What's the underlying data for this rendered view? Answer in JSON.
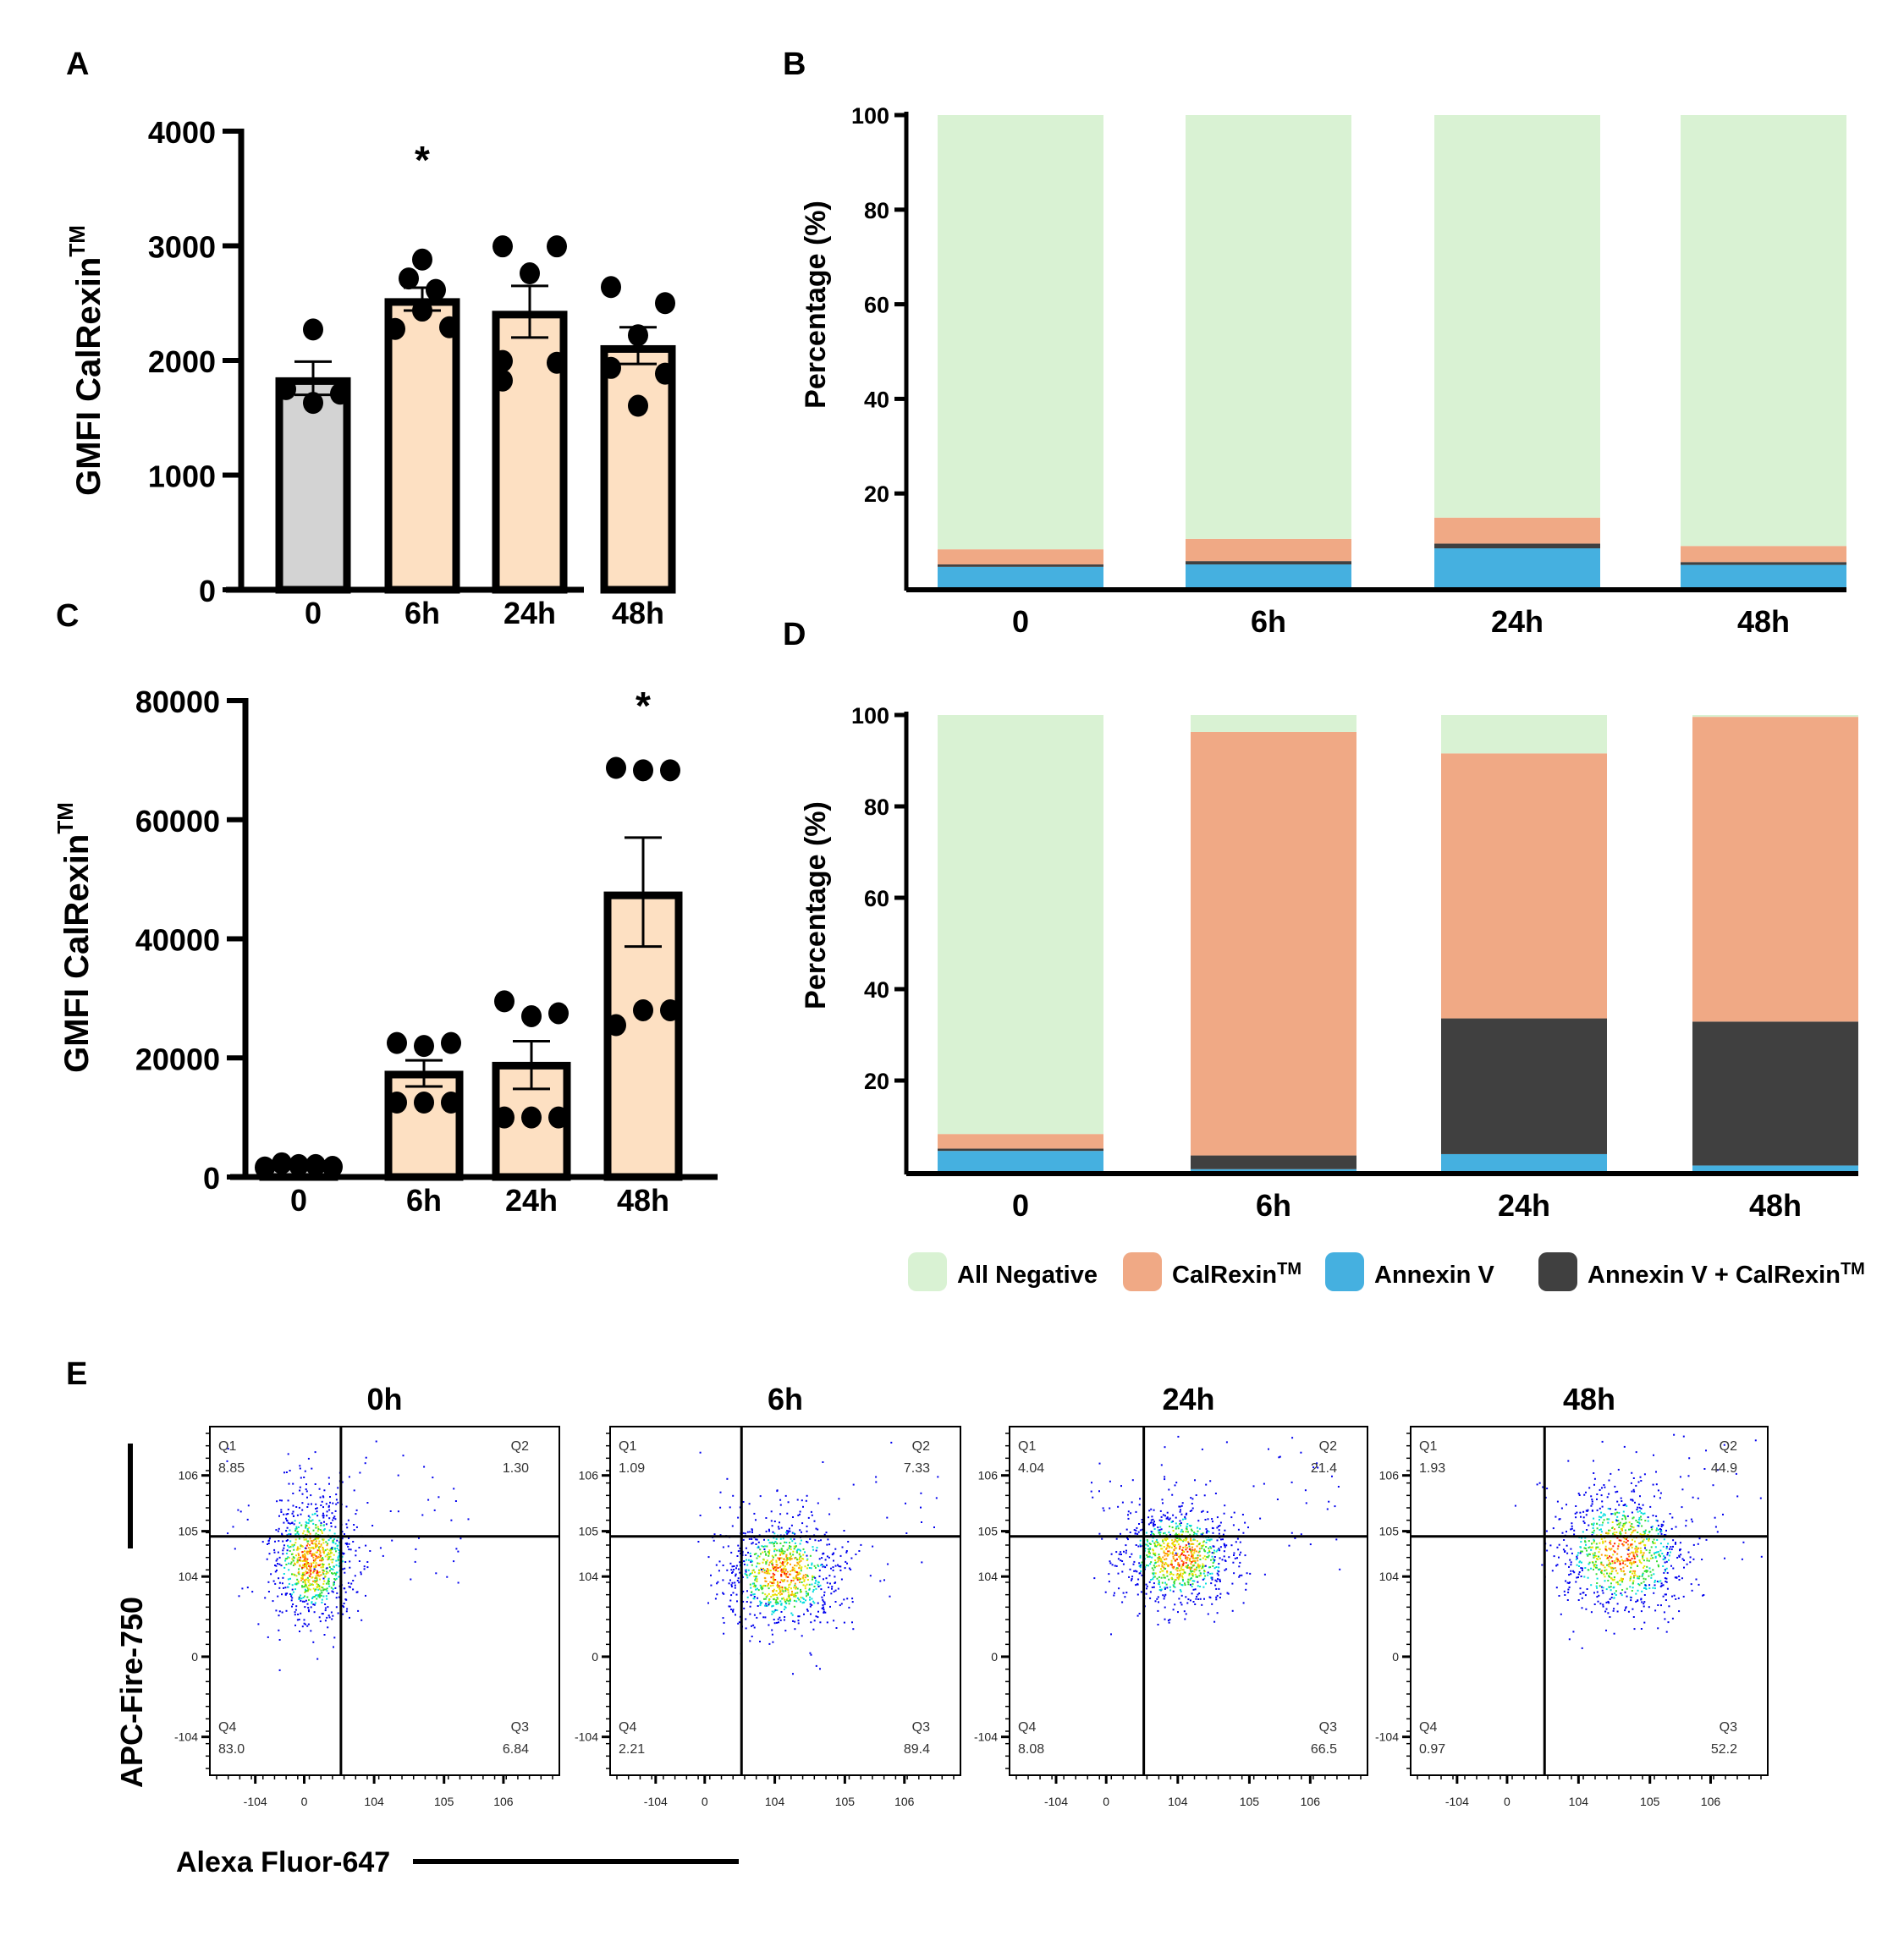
{
  "panel_labels": {
    "a": "A",
    "b": "B",
    "c": "C",
    "d": "D",
    "e": "E"
  },
  "legend": {
    "items": [
      {
        "label": "All Negative",
        "color": "#d9f2d3",
        "tm": false
      },
      {
        "label": "CalRexin",
        "color": "#f0a985",
        "tm": true
      },
      {
        "label": "Annexin V",
        "color": "#45b0e0",
        "tm": false
      },
      {
        "label": "Annexin V + CalRexin",
        "color": "#404040",
        "tm": true
      }
    ]
  },
  "chart_data": [
    {
      "id": "A",
      "type": "bar",
      "title": "",
      "ylabel": "GMFI CalRexin",
      "ylabel_superscript": "TM",
      "xlabel": "",
      "categories": [
        "0",
        "6h",
        "24h",
        "48h"
      ],
      "ylim": [
        0,
        4000
      ],
      "yticks": [
        0,
        1000,
        2000,
        3000,
        4000
      ],
      "values": [
        1820,
        2510,
        2400,
        2100
      ],
      "sem_low": [
        1700,
        2435,
        2200,
        1970
      ],
      "sem_high": [
        1990,
        2635,
        2650,
        2290
      ],
      "points": [
        [
          2270,
          1750,
          1630,
          1710
        ],
        [
          2880,
          2715,
          2615,
          2435,
          2275,
          2290
        ],
        [
          2995,
          2995,
          2760,
          1995,
          1980,
          1825
        ],
        [
          2640,
          2500,
          2220,
          1935,
          1885,
          1605
        ]
      ],
      "bar_colors": [
        "#d3d3d3",
        "#fde0c2",
        "#fde0c2",
        "#fde0c2"
      ],
      "significance": [
        "",
        "*",
        "",
        ""
      ]
    },
    {
      "id": "B",
      "type": "bar",
      "stacked": true,
      "title": "",
      "ylabel": "Percentage (%)",
      "xlabel": "",
      "categories": [
        "0",
        "6h",
        "24h",
        "48h"
      ],
      "ylim": [
        0,
        100
      ],
      "yticks": [
        20,
        40,
        60,
        80,
        100
      ],
      "series": [
        {
          "name": "Annexin V",
          "values": [
            4.5,
            5.0,
            8.4,
            4.9
          ]
        },
        {
          "name": "Annexin V + CalRexin",
          "values": [
            0.5,
            0.7,
            1.0,
            0.6
          ]
        },
        {
          "name": "CalRexin",
          "values": [
            3.2,
            4.7,
            5.5,
            3.4
          ]
        },
        {
          "name": "All Negative",
          "values": [
            91.8,
            89.6,
            85.1,
            91.1
          ]
        }
      ]
    },
    {
      "id": "C",
      "type": "bar",
      "title": "",
      "ylabel": "GMFI CalRexin",
      "ylabel_superscript": "TM",
      "xlabel": "",
      "categories": [
        "0",
        "6h",
        "24h",
        "48h"
      ],
      "ylim": [
        0,
        80000
      ],
      "yticks": [
        0,
        20000,
        40000,
        60000,
        80000
      ],
      "values": [
        1800,
        17200,
        18700,
        47300
      ],
      "sem_low": [
        1600,
        15200,
        14800,
        38700
      ],
      "sem_high": [
        2000,
        19600,
        22800,
        57000
      ],
      "points": [
        [
          1600,
          2300,
          2000,
          2000,
          1700
        ],
        [
          22500,
          22000,
          22500,
          12500,
          12500,
          12500
        ],
        [
          29500,
          27000,
          27500,
          10000,
          10000,
          10000
        ],
        [
          68700,
          68300,
          68300,
          25500,
          28000,
          28000
        ]
      ],
      "bar_colors": [
        "#d3d3d3",
        "#fde0c2",
        "#fde0c2",
        "#fde0c2"
      ],
      "significance": [
        "",
        "",
        "",
        "*"
      ]
    },
    {
      "id": "D",
      "type": "bar",
      "stacked": true,
      "title": "",
      "ylabel": "Percentage (%)",
      "xlabel": "",
      "categories": [
        "0",
        "6h",
        "24h",
        "48h"
      ],
      "ylim": [
        0,
        100
      ],
      "yticks": [
        20,
        40,
        60,
        80,
        100
      ],
      "series": [
        {
          "name": "Annexin V",
          "values": [
            4.6,
            0.6,
            3.9,
            1.4
          ]
        },
        {
          "name": "Annexin V + CalRexin",
          "values": [
            0.5,
            3.0,
            29.7,
            31.5
          ]
        },
        {
          "name": "CalRexin",
          "values": [
            3.2,
            92.7,
            58.0,
            66.7
          ]
        },
        {
          "name": "All Negative",
          "values": [
            91.7,
            3.7,
            8.4,
            0.4
          ]
        }
      ]
    },
    {
      "id": "E",
      "type": "scatter",
      "subtype": "flow-cytometry-quadrant",
      "xlabel": "Alexa Fluor-647",
      "ylabel": "APC-Fire-750",
      "xticks": [
        "-10^4",
        "0",
        "10^4",
        "10^5",
        "10^6"
      ],
      "yticks": [
        "10^6",
        "10^5",
        "10^4",
        "0",
        "-10^4"
      ],
      "plots": [
        {
          "title": "0h",
          "Q1": "8.85",
          "Q2": "1.30",
          "Q3": "6.84",
          "Q4": "83.0",
          "center": [
            0.29,
            0.38
          ],
          "spread": [
            0.06,
            0.09
          ]
        },
        {
          "title": "6h",
          "Q1": "1.09",
          "Q2": "7.33",
          "Q3": "89.4",
          "Q4": "2.21",
          "center": [
            0.49,
            0.42
          ],
          "spread": [
            0.08,
            0.08
          ]
        },
        {
          "title": "24h",
          "Q1": "4.04",
          "Q2": "21.4",
          "Q3": "66.5",
          "Q4": "8.08",
          "center": [
            0.47,
            0.37
          ],
          "spread": [
            0.08,
            0.07
          ]
        },
        {
          "title": "48h",
          "Q1": "1.93",
          "Q2": "44.9",
          "Q3": "52.2",
          "Q4": "0.97",
          "center": [
            0.59,
            0.36
          ],
          "spread": [
            0.09,
            0.09
          ]
        }
      ],
      "quadrant_labels": [
        "Q1",
        "Q2",
        "Q3",
        "Q4"
      ]
    }
  ]
}
